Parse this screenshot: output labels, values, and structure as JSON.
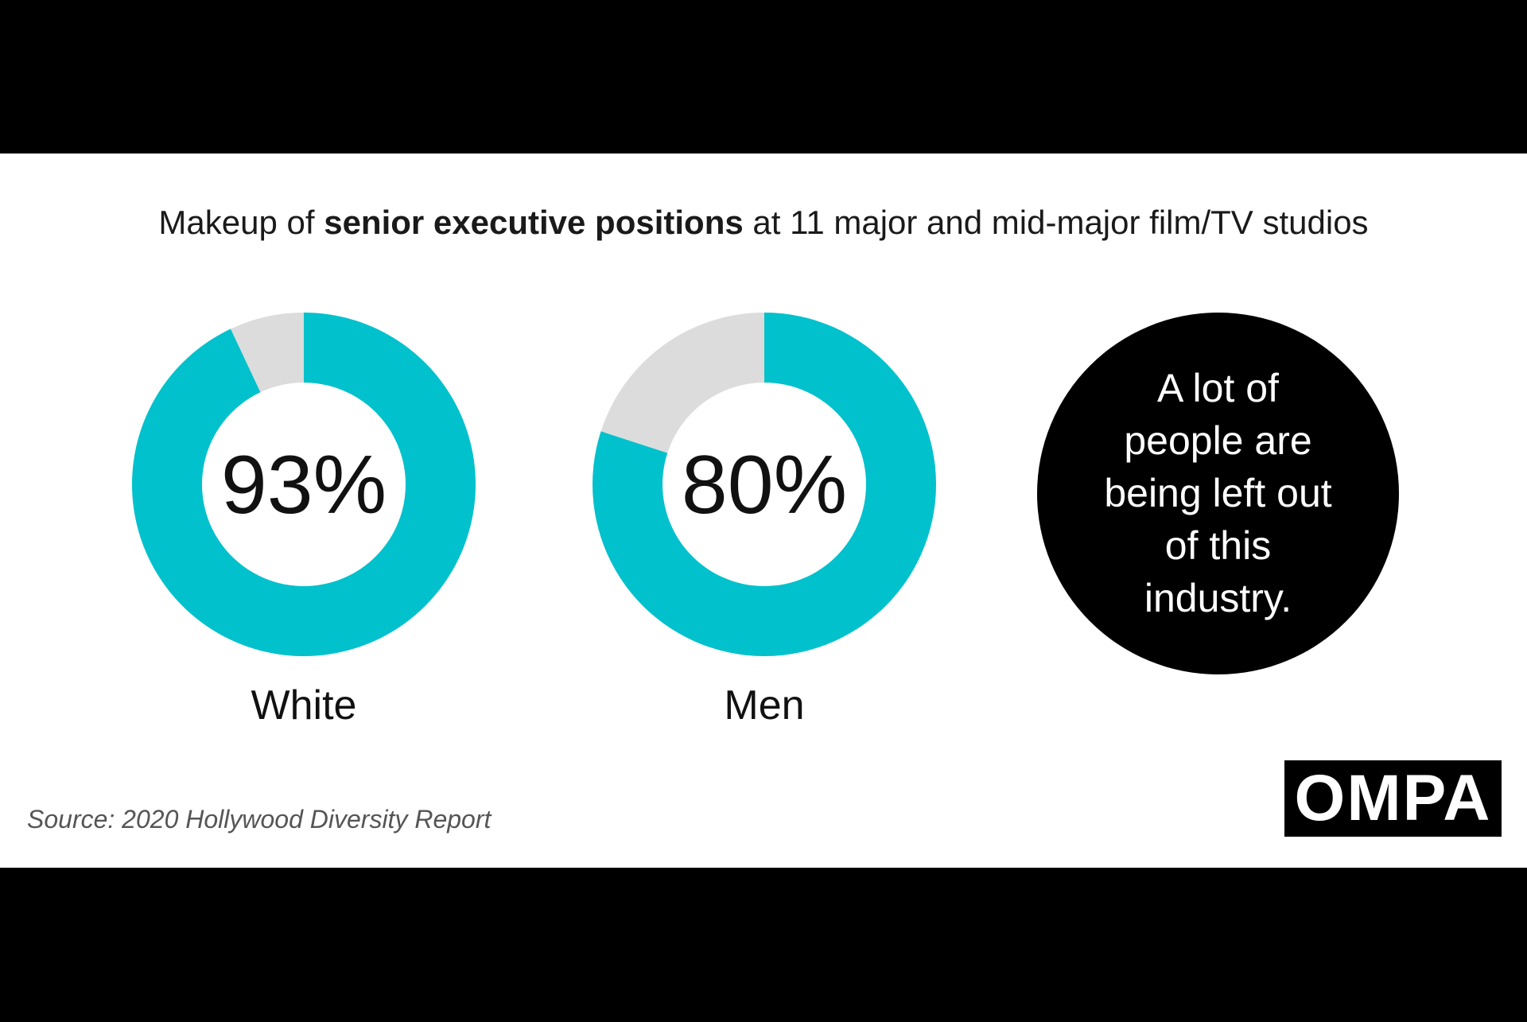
{
  "title": {
    "pre": "Makeup of ",
    "bold": "senior executive positions",
    "post": " at 11 major and mid-major film/TV studios"
  },
  "chart_data": [
    {
      "type": "pie",
      "categories": [
        "White",
        ""
      ],
      "values": [
        93,
        7
      ],
      "label": "93%",
      "category_label": "White",
      "colors": [
        "#00C1CC",
        "#DCDCDC"
      ]
    },
    {
      "type": "pie",
      "categories": [
        "Men",
        ""
      ],
      "values": [
        80,
        20
      ],
      "label": "80%",
      "category_label": "Men",
      "colors": [
        "#00C1CC",
        "#DCDCDC"
      ]
    }
  ],
  "callout": {
    "lines": [
      "A lot of",
      "people are",
      "being left out",
      "of this",
      "industry."
    ]
  },
  "source": "Source: 2020 Hollywood Diversity Report",
  "logo": "OMPA",
  "colors": {
    "accent": "#00C1CC",
    "remainder": "#DCDCDC",
    "band": "#000000"
  }
}
